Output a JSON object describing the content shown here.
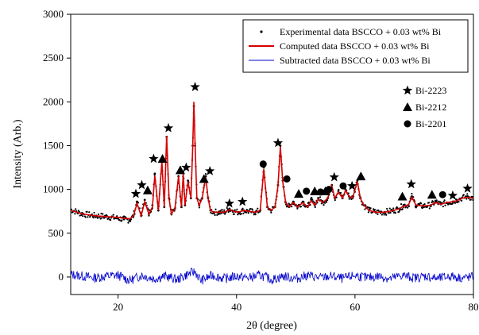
{
  "chart_data": {
    "type": "line",
    "xlabel": "2θ (degree)",
    "ylabel": "Intensity (Arb.)",
    "xlim": [
      12,
      80
    ],
    "ylim": [
      -200,
      3000
    ],
    "x_ticks": [
      20,
      40,
      60,
      80
    ],
    "y_ticks": [
      0,
      500,
      1000,
      1500,
      2000,
      2500,
      3000
    ],
    "grid": false,
    "legend_position": "top-right",
    "series": [
      {
        "name": "Experimental data BSCCO + 0.03 wt% Bi",
        "style": "dots",
        "color": "#000000",
        "x": [
          12,
          14,
          16,
          18,
          20,
          21,
          22,
          22.6,
          23.2,
          23.9,
          24.5,
          25.2,
          25.8,
          26.2,
          26.8,
          27.4,
          27.8,
          28.2,
          28.6,
          29.0,
          29.6,
          30.2,
          30.7,
          31.0,
          31.3,
          31.8,
          32.3,
          32.6,
          32.8,
          33.0,
          33.3,
          33.7,
          34.2,
          34.8,
          35.2,
          35.6,
          36.2,
          37.0,
          38.0,
          38.8,
          39.5,
          40.3,
          41.2,
          42.0,
          43.2,
          44.0,
          44.6,
          45.2,
          45.8,
          46.5,
          47.0,
          47.4,
          47.8,
          48.3,
          48.9,
          49.6,
          50.3,
          51.2,
          52.0,
          52.6,
          53.2,
          53.8,
          54.6,
          55.4,
          56.1,
          56.6,
          57.2,
          57.9,
          58.4,
          59.0,
          59.6,
          60.4,
          60.9,
          61.5,
          62.4,
          63.5,
          65.0,
          66.5,
          67.5,
          68.2,
          69.0,
          69.6,
          70.3,
          71.5,
          72.8,
          73.6,
          74.5,
          75.5,
          76.5,
          77.2,
          78.0,
          79.0,
          80.0
        ],
        "y": [
          770,
          720,
          700,
          690,
          670,
          660,
          650,
          700,
          860,
          700,
          880,
          720,
          820,
          1180,
          760,
          1350,
          800,
          1600,
          900,
          720,
          780,
          1150,
          800,
          1200,
          820,
          1100,
          900,
          1500,
          1950,
          1500,
          900,
          820,
          900,
          1150,
          900,
          760,
          740,
          740,
          740,
          780,
          750,
          740,
          760,
          750,
          740,
          760,
          1250,
          800,
          760,
          800,
          1050,
          1500,
          1100,
          850,
          800,
          860,
          800,
          860,
          800,
          880,
          820,
          900,
          850,
          900,
          1050,
          900,
          980,
          900,
          1000,
          920,
          900,
          1100,
          900,
          820,
          760,
          740,
          740,
          760,
          780,
          820,
          820,
          920,
          820,
          810,
          820,
          860,
          830,
          850,
          860,
          880,
          900,
          920,
          900
        ]
      },
      {
        "name": "Computed data BSCCO + 0.03 wt% Bi",
        "style": "line",
        "color": "#d60000",
        "x": [
          12,
          14,
          16,
          18,
          20,
          21,
          22,
          22.6,
          23.2,
          23.9,
          24.5,
          25.2,
          25.8,
          26.2,
          26.8,
          27.4,
          27.8,
          28.2,
          28.6,
          29.0,
          29.6,
          30.2,
          30.7,
          31.0,
          31.3,
          31.8,
          32.3,
          32.6,
          32.8,
          33.0,
          33.3,
          33.7,
          34.2,
          34.8,
          35.2,
          35.6,
          36.2,
          37.0,
          38.0,
          38.8,
          39.5,
          40.3,
          41.2,
          42.0,
          43.2,
          44.0,
          44.6,
          45.2,
          45.8,
          46.5,
          47.0,
          47.4,
          47.8,
          48.3,
          48.9,
          49.6,
          50.3,
          51.2,
          52.0,
          52.6,
          53.2,
          53.8,
          54.6,
          55.4,
          56.1,
          56.6,
          57.2,
          57.9,
          58.4,
          59.0,
          59.6,
          60.4,
          60.9,
          61.5,
          62.4,
          63.5,
          65.0,
          66.5,
          67.5,
          68.2,
          69.0,
          69.6,
          70.3,
          71.5,
          72.8,
          73.6,
          74.5,
          75.5,
          76.5,
          77.2,
          78.0,
          79.0,
          80.0
        ],
        "y": [
          760,
          720,
          700,
          690,
          680,
          670,
          665,
          700,
          840,
          700,
          860,
          720,
          800,
          1160,
          760,
          1320,
          800,
          1610,
          900,
          720,
          780,
          1150,
          800,
          1180,
          820,
          1090,
          900,
          1480,
          2000,
          1520,
          900,
          820,
          900,
          1140,
          900,
          760,
          740,
          740,
          740,
          770,
          750,
          740,
          760,
          750,
          740,
          760,
          1230,
          800,
          760,
          800,
          1040,
          1490,
          1090,
          850,
          800,
          850,
          800,
          850,
          800,
          870,
          820,
          890,
          850,
          900,
          1040,
          900,
          970,
          900,
          990,
          920,
          900,
          1090,
          900,
          820,
          760,
          740,
          740,
          760,
          780,
          810,
          820,
          910,
          820,
          810,
          820,
          850,
          830,
          850,
          860,
          870,
          900,
          910,
          900
        ]
      },
      {
        "name": "Subtracted data BSCCO + 0.03 wt% Bi",
        "style": "noisy-line",
        "color": "#0000cc",
        "x": [
          12,
          14,
          16,
          18,
          20,
          22,
          24,
          26,
          28,
          30,
          32,
          33,
          34,
          36,
          38,
          40,
          42,
          44,
          46,
          48,
          50,
          52,
          54,
          56,
          58,
          60,
          62,
          64,
          66,
          68,
          70,
          72,
          74,
          76,
          78,
          80
        ],
        "y": [
          30,
          10,
          -10,
          10,
          20,
          -40,
          20,
          -20,
          10,
          -30,
          40,
          60,
          -40,
          20,
          -20,
          10,
          -10,
          20,
          -30,
          10,
          -20,
          20,
          -10,
          10,
          -20,
          20,
          -10,
          10,
          -20,
          20,
          -10,
          10,
          -20,
          10,
          -10,
          0
        ]
      }
    ],
    "phase_markers": [
      {
        "name": "Bi-2223",
        "shape": "star",
        "positions": [
          [
            23,
            950
          ],
          [
            24,
            1050
          ],
          [
            26,
            1350
          ],
          [
            28.5,
            1700
          ],
          [
            31.5,
            1250
          ],
          [
            33,
            2170
          ],
          [
            35.5,
            1210
          ],
          [
            38.8,
            840
          ],
          [
            41,
            860
          ],
          [
            47,
            1530
          ],
          [
            56.5,
            1140
          ],
          [
            59.5,
            1040
          ],
          [
            69.5,
            1060
          ],
          [
            76.5,
            930
          ],
          [
            79,
            1010
          ]
        ]
      },
      {
        "name": "Bi-2212",
        "shape": "triangle",
        "positions": [
          [
            25,
            990
          ],
          [
            27.5,
            1350
          ],
          [
            30.5,
            1220
          ],
          [
            34.5,
            1120
          ],
          [
            50.5,
            950
          ],
          [
            53.2,
            980
          ],
          [
            55,
            980
          ],
          [
            61,
            1150
          ],
          [
            68,
            920
          ],
          [
            73,
            940
          ]
        ]
      },
      {
        "name": "Bi-2201",
        "shape": "circle",
        "positions": [
          [
            44.5,
            1290
          ],
          [
            48.5,
            1120
          ],
          [
            51.8,
            980
          ],
          [
            54.2,
            970
          ],
          [
            55.6,
            1000
          ],
          [
            58,
            1040
          ],
          [
            74.8,
            940
          ]
        ]
      }
    ]
  }
}
